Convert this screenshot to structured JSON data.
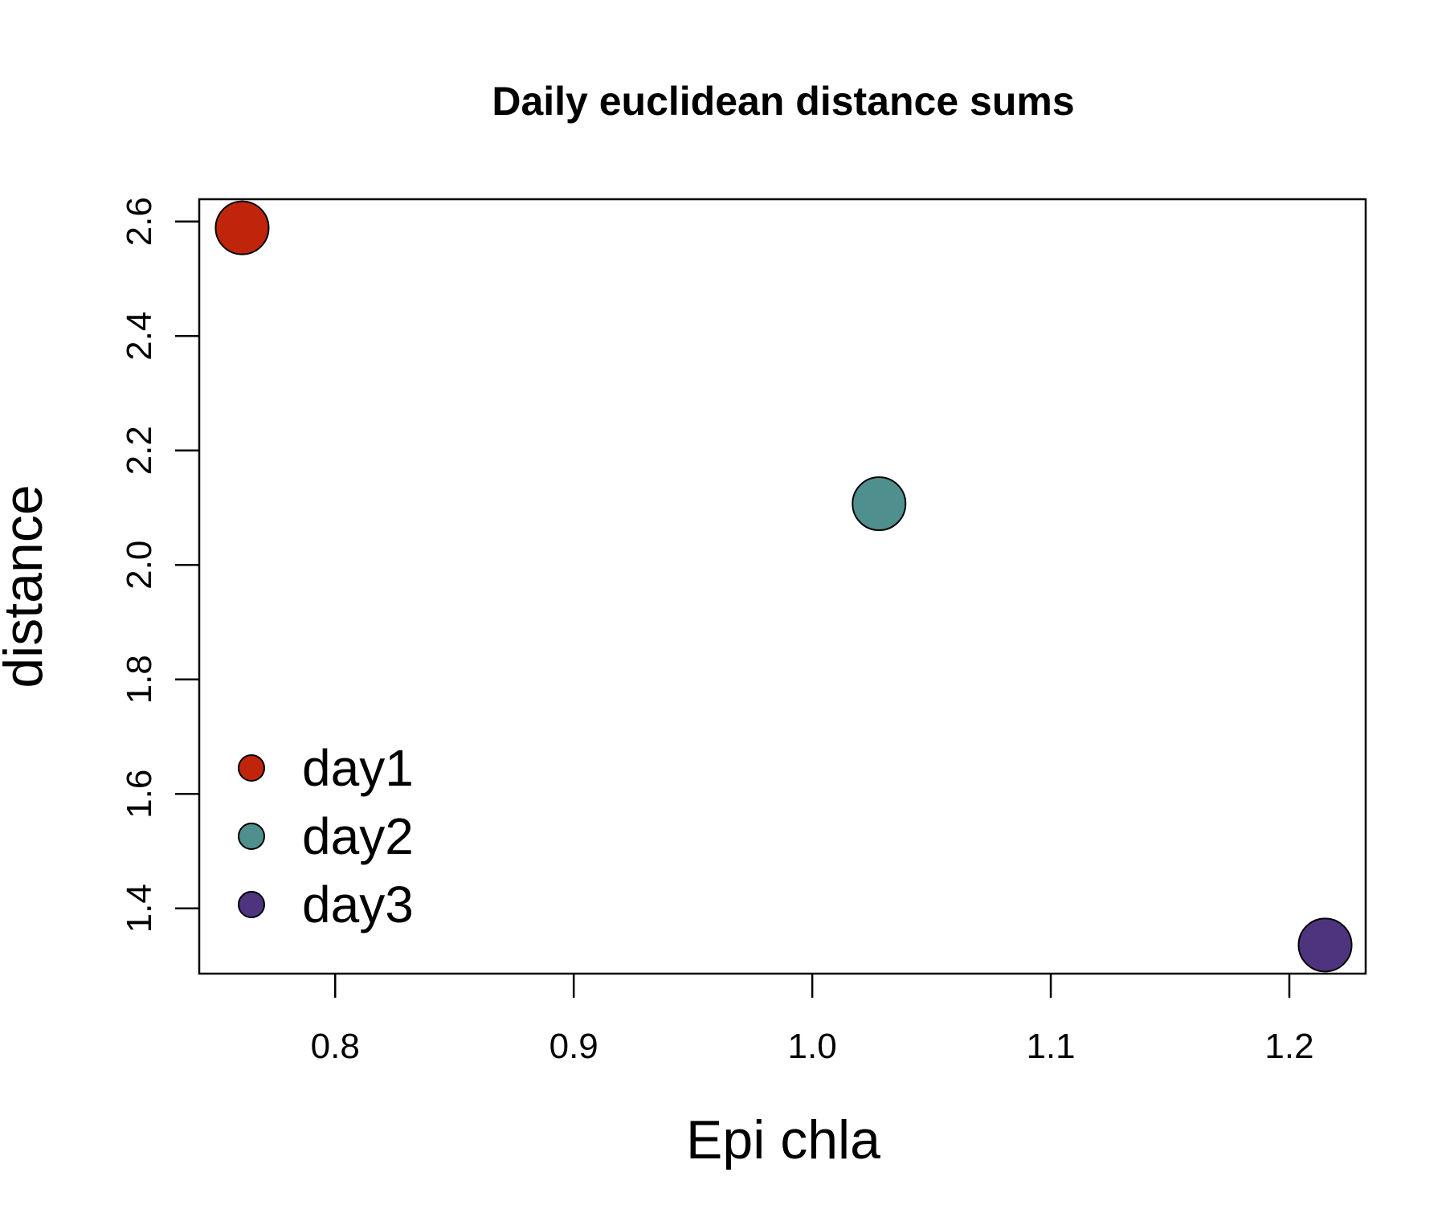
{
  "chart_data": {
    "type": "scatter",
    "title": "Daily euclidean distance sums",
    "xlabel": "Epi chla",
    "ylabel": "distance",
    "xlim": [
      0.743,
      1.232
    ],
    "ylim": [
      1.286,
      2.639
    ],
    "xticks": [
      0.8,
      0.9,
      1.0,
      1.1,
      1.2
    ],
    "xtick_labels": [
      "0.8",
      "0.9",
      "1.0",
      "1.1",
      "1.2"
    ],
    "yticks": [
      1.4,
      1.6,
      1.8,
      2.0,
      2.2,
      2.4,
      2.6
    ],
    "ytick_labels": [
      "1.4",
      "1.6",
      "1.8",
      "2.0",
      "2.2",
      "2.4",
      "2.6"
    ],
    "grid": false,
    "legend_position": "bottom-left",
    "series": [
      {
        "name": "day1",
        "color": "#C0250B",
        "x": 0.761,
        "y": 2.589
      },
      {
        "name": "day2",
        "color": "#4F8F8E",
        "x": 1.028,
        "y": 2.107
      },
      {
        "name": "day3",
        "color": "#4E347E",
        "x": 1.215,
        "y": 1.336
      }
    ]
  }
}
